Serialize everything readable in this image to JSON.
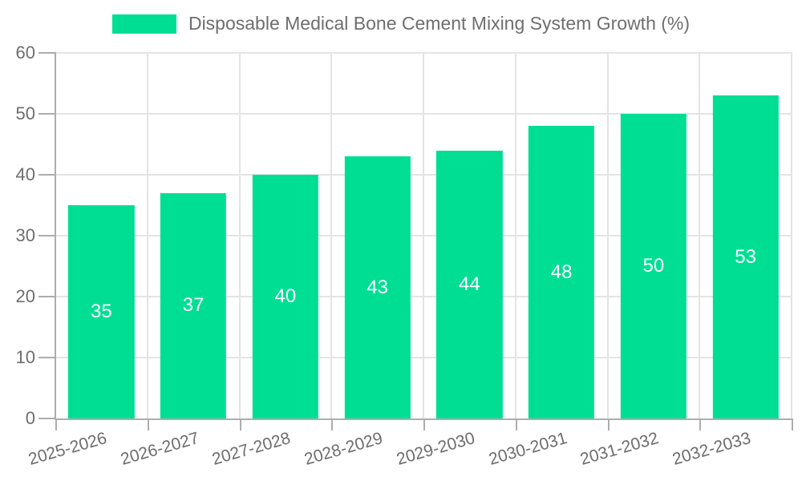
{
  "chart_data": {
    "type": "bar",
    "title": "Disposable Medical Bone Cement Mixing System Growth (%)",
    "categories": [
      "2025-2026",
      "2026-2027",
      "2027-2028",
      "2028-2029",
      "2029-2030",
      "2030-2031",
      "2031-2032",
      "2032-2033"
    ],
    "series": [
      {
        "name": "Disposable Medical Bone Cement Mixing System Growth (%)",
        "values": [
          35,
          37,
          40,
          43,
          44,
          48,
          50,
          53
        ]
      }
    ],
    "xlabel": "",
    "ylabel": "",
    "ylim": [
      0,
      60
    ],
    "yticks": [
      0,
      10,
      20,
      30,
      40,
      50,
      60
    ],
    "grid": true,
    "legend_position": "top-center",
    "x_label_rotation_deg": -16,
    "bar_labels_inside": true,
    "colors": {
      "bar": "#00DE94",
      "bar_label": "#ffffff",
      "axis": "#adadad",
      "grid": "#e4e4e4",
      "text": "#6e6e6e"
    }
  }
}
